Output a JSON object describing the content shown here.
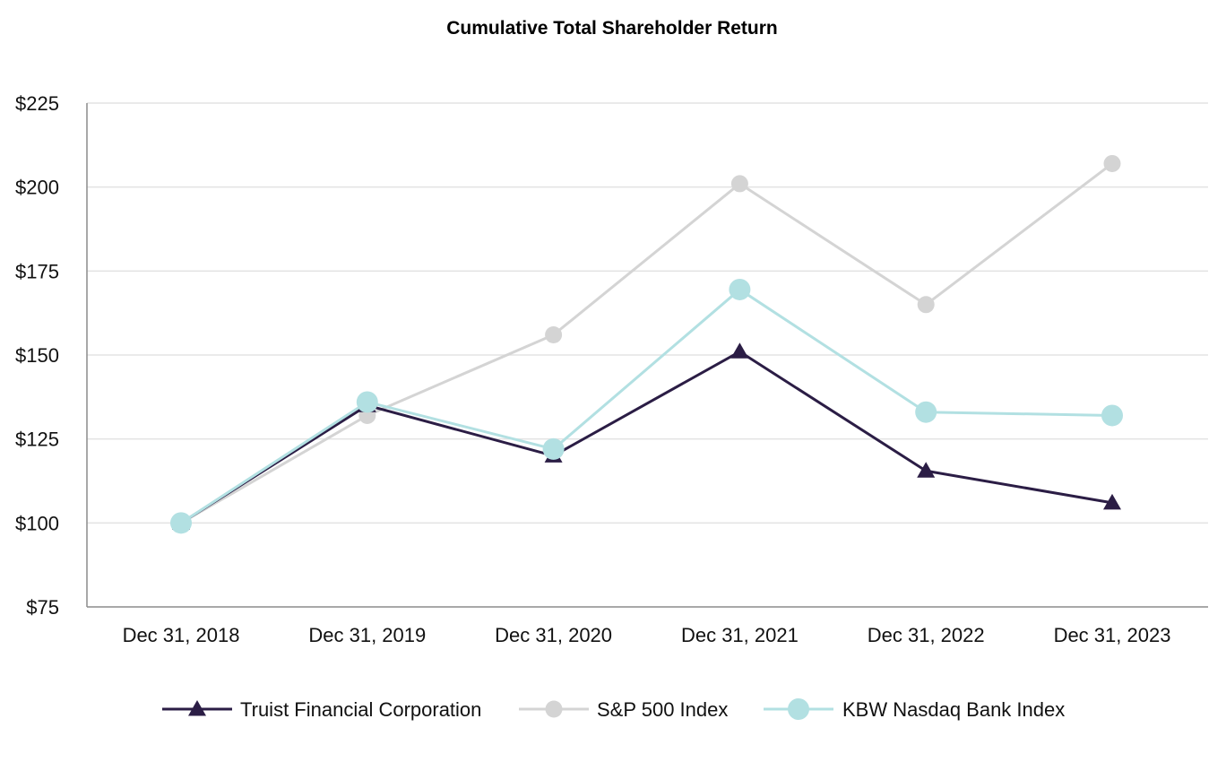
{
  "chart_data": {
    "type": "line",
    "title": "Cumulative Total Shareholder Return",
    "xlabel": "",
    "ylabel": "",
    "categories": [
      "Dec 31, 2018",
      "Dec 31, 2019",
      "Dec 31, 2020",
      "Dec 31, 2021",
      "Dec 31, 2022",
      "Dec 31, 2023"
    ],
    "y_ticks": [
      "$75",
      "$100",
      "$125",
      "$150",
      "$175",
      "$200",
      "$225"
    ],
    "ylim": [
      75,
      225
    ],
    "grid": true,
    "legend_position": "bottom",
    "series": [
      {
        "name": "Truist Financial Corporation",
        "marker": "triangle",
        "color": "#2b1d45",
        "values": [
          100,
          135,
          120,
          151,
          115.5,
          106
        ]
      },
      {
        "name": "S&P 500 Index",
        "marker": "circle",
        "color": "#d4d4d4",
        "values": [
          100,
          132,
          156,
          201,
          165,
          207
        ]
      },
      {
        "name": "KBW Nasdaq Bank Index",
        "marker": "circle-large",
        "color": "#b2e0e2",
        "values": [
          100,
          136,
          122,
          169.5,
          133,
          132
        ]
      }
    ]
  }
}
